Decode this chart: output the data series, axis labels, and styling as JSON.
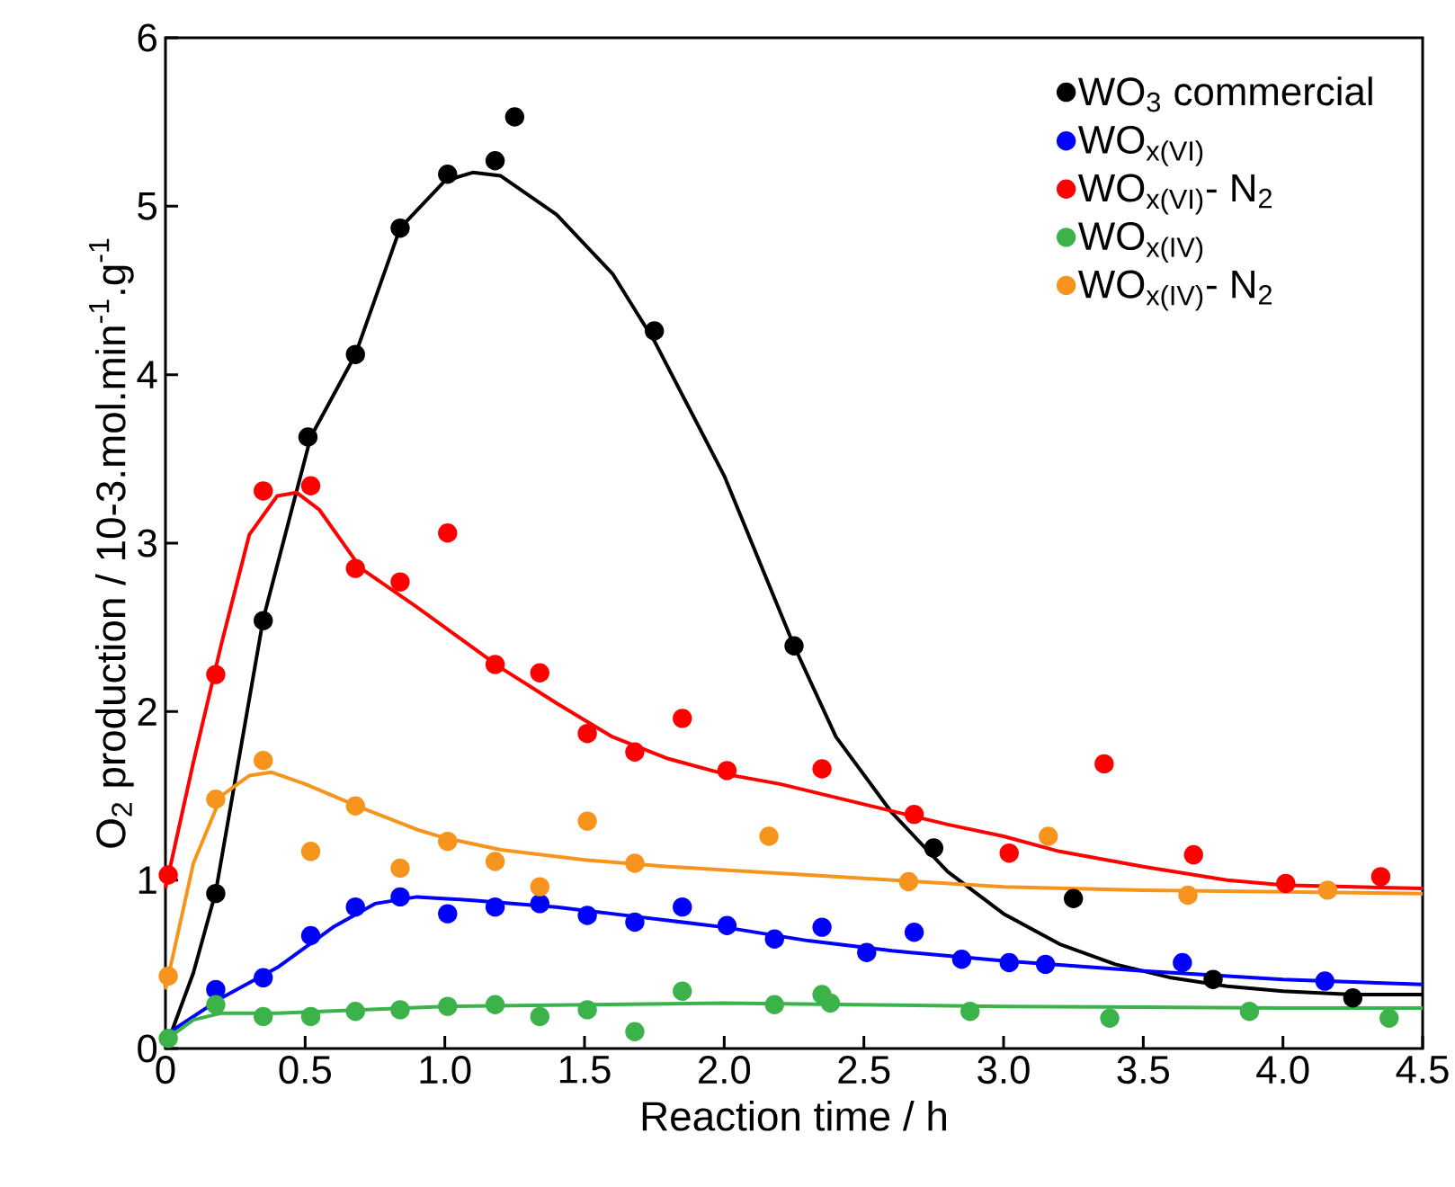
{
  "chart_data": {
    "type": "scatter",
    "xlabel": "Reaction time / h",
    "ylabel": "O$_{2}$ production / 10-3.mol.min$^{-1}$.g$^{-1}$",
    "xlim": [
      0,
      4.5
    ],
    "ylim": [
      0,
      6
    ],
    "xticks": [
      0,
      0.5,
      {
        "value": 1,
        "label": "1.0"
      },
      1.5,
      {
        "value": 2,
        "label": "2.0"
      },
      2.5,
      {
        "value": 3,
        "label": "3.0"
      },
      3.5,
      {
        "value": 4,
        "label": "4.0"
      },
      4.5
    ],
    "yticks": [
      0,
      1,
      2,
      3,
      4,
      5,
      6
    ],
    "legend": "top right",
    "grid": false,
    "series": [
      {
        "name": "WO$_{3}$ commercial",
        "marker": "circle",
        "color": "#000000",
        "x": [
          0.18,
          0.35,
          0.51,
          0.68,
          0.84,
          1.01,
          1.18,
          1.25,
          1.75,
          2.25,
          2.75,
          3.25,
          3.75,
          4.25
        ],
        "values": [
          0.92,
          2.54,
          3.63,
          4.12,
          4.87,
          5.19,
          5.27,
          5.53,
          4.26,
          2.39,
          1.19,
          0.89,
          0.41,
          0.3
        ]
      },
      {
        "name": "WO$_{x(VI)}$",
        "marker": "circle",
        "color": "#0000ff",
        "x": [
          0.18,
          0.35,
          0.52,
          0.68,
          0.84,
          1.01,
          1.18,
          1.34,
          1.51,
          1.68,
          1.85,
          2.01,
          2.18,
          2.35,
          2.51,
          2.68,
          2.85,
          3.02,
          3.15,
          3.64,
          4.15
        ],
        "values": [
          0.35,
          0.42,
          0.67,
          0.84,
          0.9,
          0.8,
          0.84,
          0.86,
          0.79,
          0.75,
          0.84,
          0.73,
          0.65,
          0.72,
          0.57,
          0.69,
          0.53,
          0.51,
          0.5,
          0.51,
          0.4
        ]
      },
      {
        "name": "WO$_{x(VI)}$- N$_{2}$",
        "marker": "circle",
        "color": "#ff0000",
        "x": [
          0.01,
          0.18,
          0.35,
          0.52,
          0.68,
          0.84,
          1.01,
          1.18,
          1.34,
          1.51,
          1.68,
          1.85,
          2.01,
          2.35,
          2.68,
          3.02,
          3.36,
          3.68,
          4.01,
          4.35
        ],
        "values": [
          1.03,
          2.22,
          3.31,
          3.34,
          2.85,
          2.77,
          3.06,
          2.28,
          2.23,
          1.87,
          1.76,
          1.96,
          1.65,
          1.66,
          1.39,
          1.16,
          1.69,
          1.15,
          0.98,
          1.02
        ]
      },
      {
        "name": "WO$_{x(IV)}$",
        "marker": "circle",
        "color": "#3cb34a",
        "x": [
          0.01,
          0.18,
          0.35,
          0.52,
          0.68,
          0.84,
          1.01,
          1.18,
          1.34,
          1.51,
          1.68,
          1.85,
          2.18,
          2.35,
          2.38,
          2.88,
          3.38,
          3.88,
          4.38
        ],
        "values": [
          0.06,
          0.26,
          0.19,
          0.19,
          0.22,
          0.23,
          0.25,
          0.26,
          0.19,
          0.23,
          0.1,
          0.34,
          0.26,
          0.32,
          0.27,
          0.22,
          0.18,
          0.22,
          0.18
        ]
      },
      {
        "name": "WO$_{x(IV)}$- N$_{2}$",
        "marker": "circle",
        "color": "#f7941d",
        "x": [
          0.01,
          0.18,
          0.35,
          0.52,
          0.68,
          0.84,
          1.01,
          1.18,
          1.34,
          1.51,
          1.68,
          2.16,
          2.66,
          3.16,
          3.66,
          4.16
        ],
        "values": [
          0.43,
          1.48,
          1.71,
          1.17,
          1.44,
          1.07,
          1.23,
          1.11,
          0.96,
          1.35,
          1.1,
          1.26,
          0.99,
          1.26,
          0.91,
          0.94
        ]
      },
      {
        "type": "line",
        "marker": "none",
        "color": "#000000",
        "x": [
          0.0,
          0.1,
          0.18,
          0.35,
          0.52,
          0.68,
          0.84,
          1.0,
          1.1,
          1.2,
          1.4,
          1.6,
          1.75,
          2.0,
          2.25,
          2.4,
          2.6,
          2.8,
          3.0,
          3.2,
          3.4,
          3.6,
          3.8,
          4.0,
          4.25,
          4.5
        ],
        "values": [
          0.0,
          0.45,
          0.93,
          2.55,
          3.63,
          4.12,
          4.87,
          5.15,
          5.2,
          5.18,
          4.95,
          4.6,
          4.2,
          3.4,
          2.39,
          1.85,
          1.4,
          1.05,
          0.8,
          0.62,
          0.5,
          0.42,
          0.37,
          0.34,
          0.32,
          0.32
        ]
      },
      {
        "type": "line",
        "marker": "none",
        "color": "#0000ff",
        "x": [
          0.0,
          0.2,
          0.4,
          0.6,
          0.75,
          0.9,
          1.1,
          1.4,
          1.7,
          2.0,
          2.3,
          2.6,
          3.0,
          3.5,
          4.0,
          4.5
        ],
        "values": [
          0.08,
          0.3,
          0.48,
          0.72,
          0.86,
          0.9,
          0.88,
          0.84,
          0.78,
          0.72,
          0.64,
          0.58,
          0.52,
          0.46,
          0.41,
          0.38
        ]
      },
      {
        "type": "line",
        "marker": "none",
        "color": "#ff0000",
        "x": [
          0.0,
          0.1,
          0.2,
          0.3,
          0.4,
          0.47,
          0.55,
          0.7,
          0.9,
          1.0,
          1.2,
          1.4,
          1.6,
          1.8,
          2.0,
          2.2,
          2.5,
          2.8,
          3.0,
          3.2,
          3.5,
          3.8,
          4.0,
          4.5
        ],
        "values": [
          0.95,
          1.7,
          2.4,
          3.05,
          3.28,
          3.3,
          3.2,
          2.85,
          2.62,
          2.5,
          2.26,
          2.05,
          1.85,
          1.72,
          1.63,
          1.57,
          1.45,
          1.33,
          1.26,
          1.17,
          1.08,
          1.0,
          0.97,
          0.95
        ]
      },
      {
        "type": "line",
        "marker": "none",
        "color": "#3cb34a",
        "x": [
          0.0,
          0.1,
          0.2,
          0.4,
          0.7,
          1.0,
          1.5,
          2.0,
          2.5,
          3.0,
          4.0,
          4.5
        ],
        "values": [
          0.05,
          0.17,
          0.21,
          0.21,
          0.23,
          0.25,
          0.26,
          0.27,
          0.26,
          0.25,
          0.24,
          0.24
        ]
      },
      {
        "type": "line",
        "marker": "none",
        "color": "#f7941d",
        "x": [
          0.0,
          0.1,
          0.2,
          0.3,
          0.38,
          0.5,
          0.7,
          0.9,
          1.0,
          1.2,
          1.5,
          1.8,
          2.0,
          2.3,
          2.7,
          3.0,
          3.5,
          4.0,
          4.5
        ],
        "values": [
          0.35,
          1.1,
          1.5,
          1.62,
          1.64,
          1.57,
          1.43,
          1.3,
          1.25,
          1.18,
          1.12,
          1.08,
          1.06,
          1.03,
          0.99,
          0.96,
          0.94,
          0.93,
          0.92
        ]
      }
    ]
  }
}
